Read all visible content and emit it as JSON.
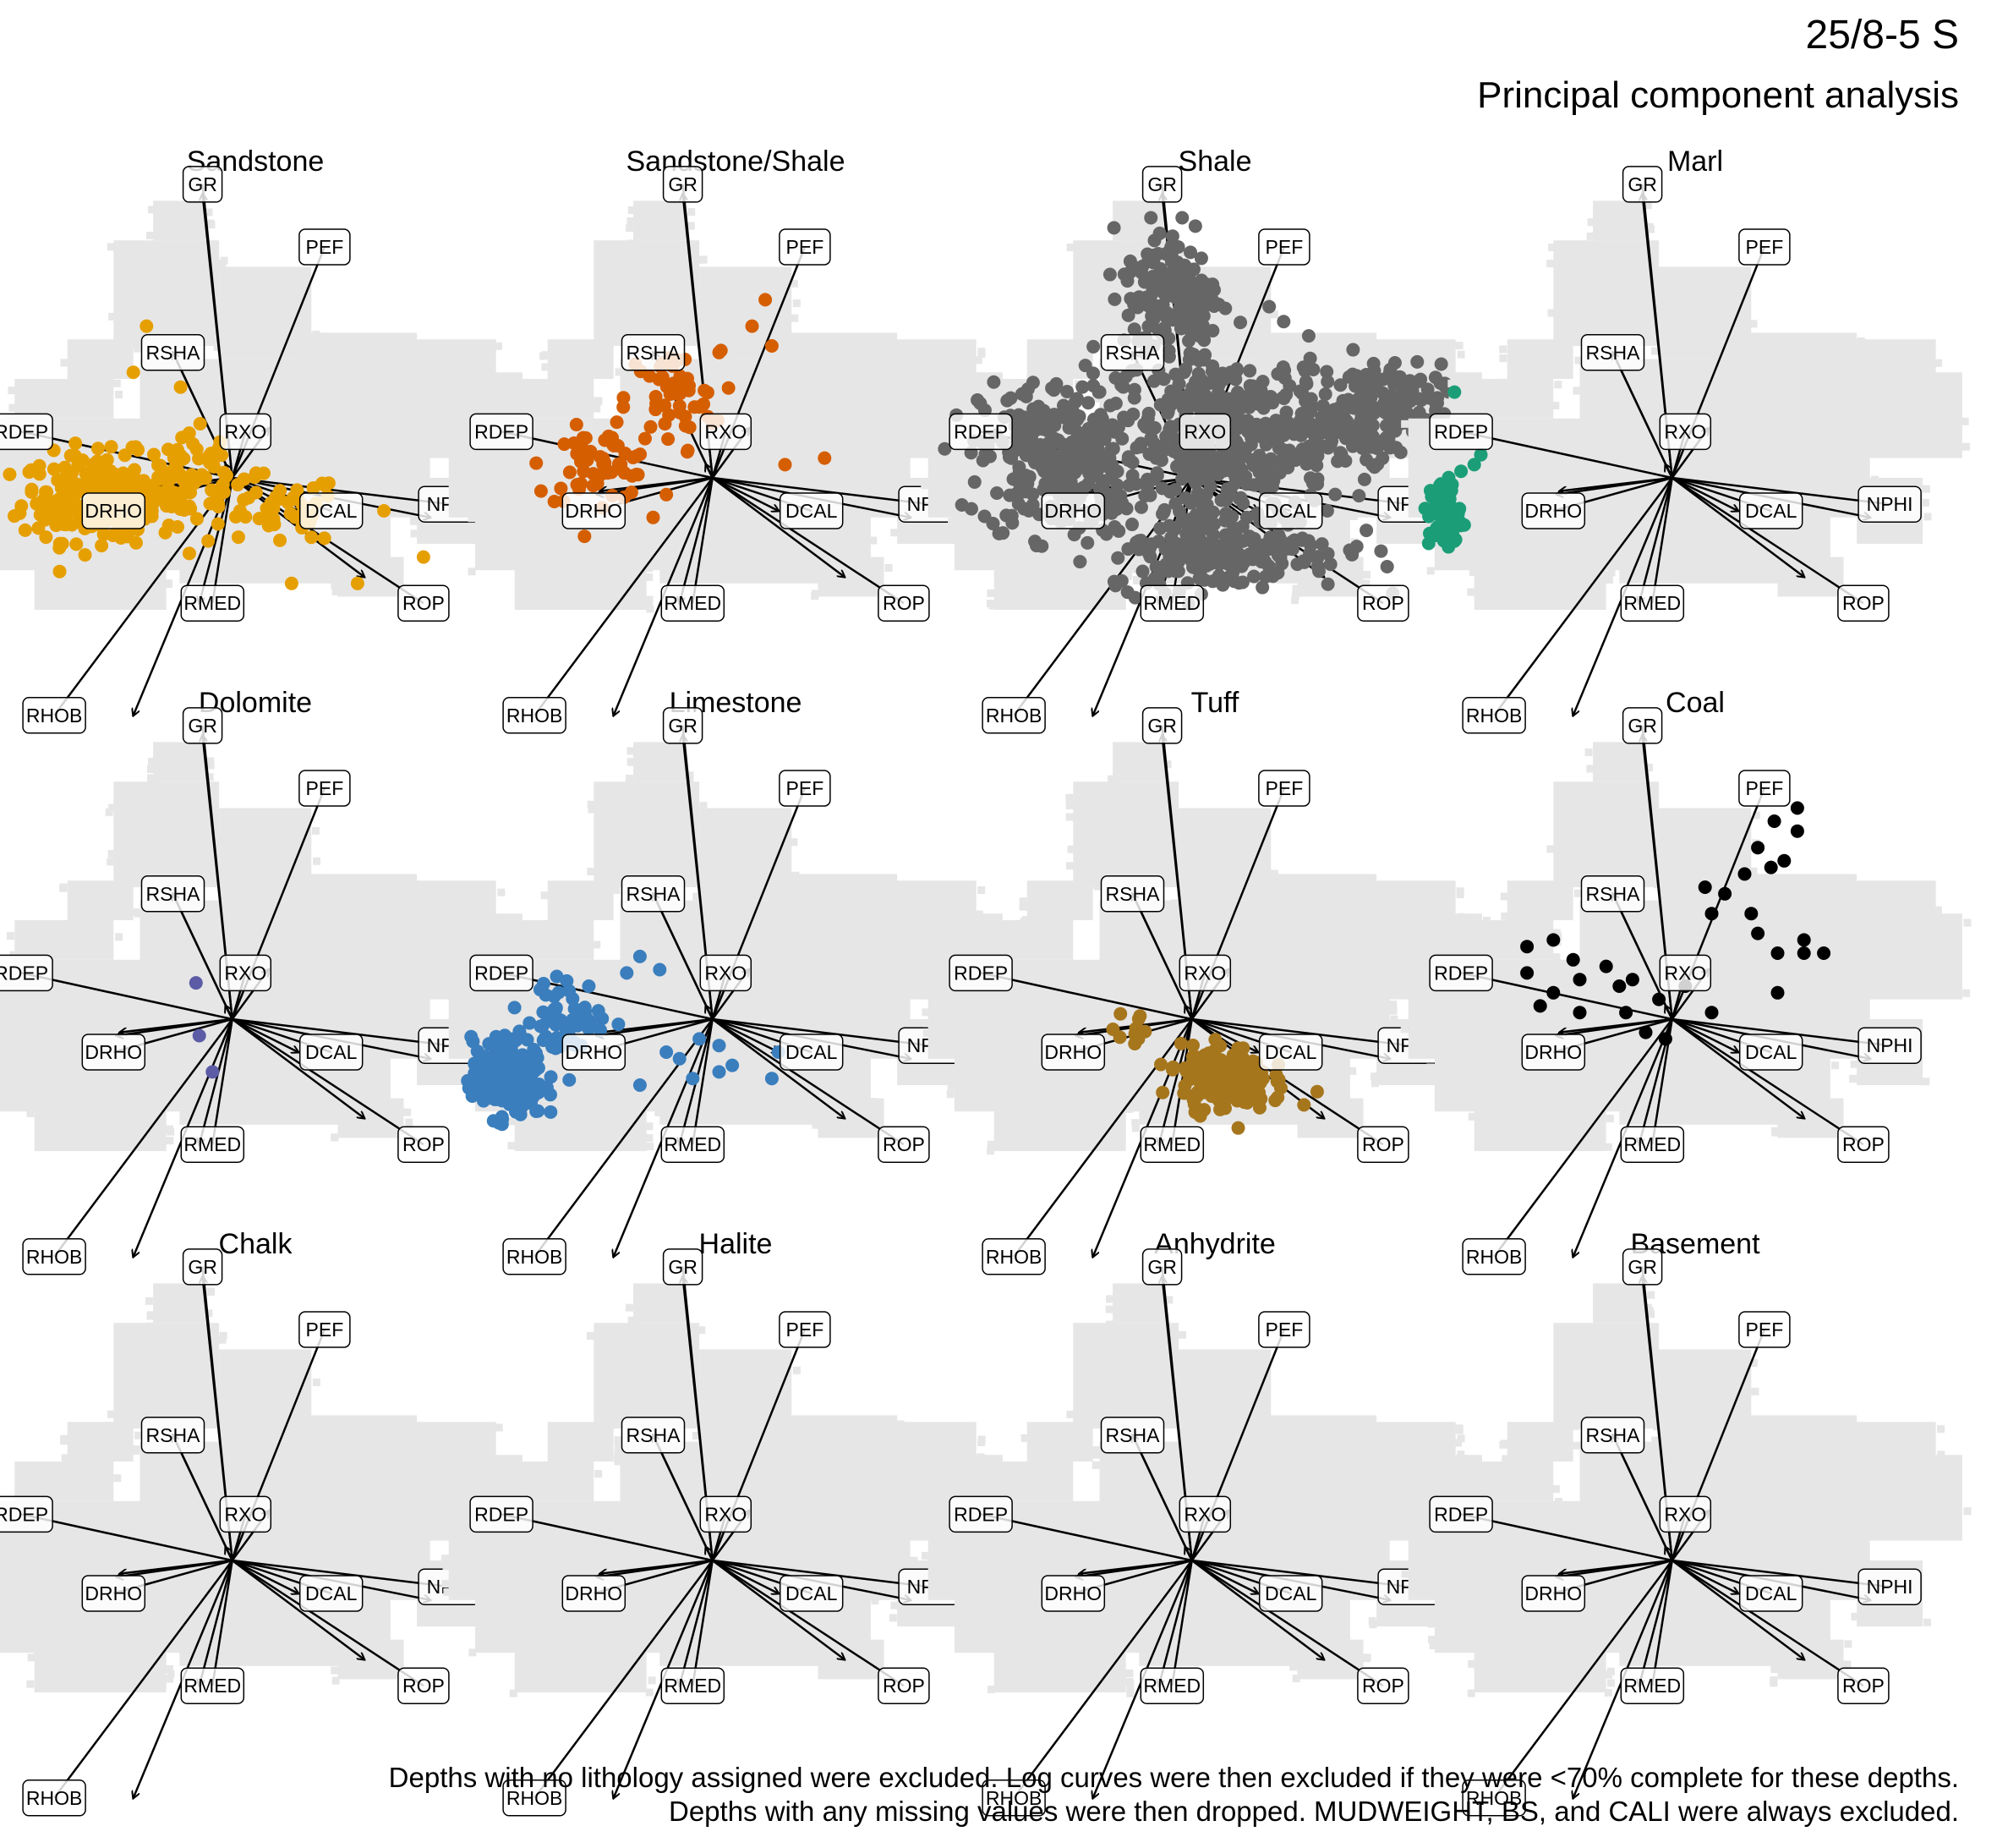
{
  "title": "25/8-5 S",
  "subtitle": "Principal component analysis",
  "caption": [
    "Depths with no lithology assigned were excluded. Log curves were then excluded if they were <70% complete for these depths.",
    "Depths with any missing values were then dropped. MUDWEIGHT, BS, and CALI were always excluded."
  ],
  "colors": {
    "background_points": "#e6e6e6",
    "arrow": "#000000",
    "label_border": "#000000",
    "label_fill": "#ffffff"
  },
  "chart_data": {
    "type": "scatter",
    "description_kind": "PCA biplot small multiples, one panel per lithology",
    "axes": {
      "x": {
        "range": [
          -5,
          5
        ]
      },
      "y": {
        "range": [
          -5,
          5
        ]
      },
      "grid": false,
      "ticks": false
    },
    "variables": [
      {
        "name": "GR",
        "loading": [
          -0.45,
          4.3
        ],
        "label": [
          -0.45,
          4.45
        ]
      },
      {
        "name": "PEF",
        "loading": [
          0.55,
          0.75
        ],
        "label": [
          1.4,
          3.5
        ]
      },
      {
        "name": "RSHA",
        "loading": [
          -0.9,
          1.9
        ],
        "label": [
          -0.9,
          1.9
        ]
      },
      {
        "name": "RXO",
        "loading": [
          -0.1,
          0.2
        ],
        "label": [
          0.2,
          0.7
        ]
      },
      {
        "name": "RDEP",
        "loading": [
          -1.7,
          -0.2
        ],
        "label": [
          -3.2,
          0.7
        ]
      },
      {
        "name": "DRHO",
        "loading": [
          -1.75,
          -0.25
        ],
        "label": [
          -1.8,
          -0.5
        ]
      },
      {
        "name": "DCAL",
        "loading": [
          1.0,
          -0.5
        ],
        "label": [
          1.5,
          -0.5
        ]
      },
      {
        "name": "NPHI",
        "loading": [
          3.0,
          -0.6
        ],
        "label": [
          3.3,
          -0.4
        ]
      },
      {
        "name": "ROP",
        "loading": [
          2.0,
          -1.5
        ],
        "label": [
          2.9,
          -1.9
        ]
      },
      {
        "name": "RMED",
        "loading": [
          -0.5,
          -1.9
        ],
        "label": [
          -0.3,
          -1.9
        ]
      },
      {
        "name": "RHOB",
        "loading": [
          -1.5,
          -3.6
        ],
        "label": [
          -2.7,
          -3.6
        ]
      }
    ],
    "background_regions": [
      {
        "x": -4.0,
        "y": -0.6,
        "w": 2.6,
        "h": 1.5
      },
      {
        "x": -3.3,
        "y": 0.9,
        "w": 1.5,
        "h": 0.6
      },
      {
        "x": -2.5,
        "y": 1.5,
        "w": 1.0,
        "h": 0.6
      },
      {
        "x": -1.8,
        "y": 2.0,
        "w": 1.6,
        "h": 1.6
      },
      {
        "x": -1.2,
        "y": 3.6,
        "w": 0.8,
        "h": 0.6
      },
      {
        "x": -1.4,
        "y": -0.6,
        "w": 4.4,
        "h": 2.4
      },
      {
        "x": -0.2,
        "y": 1.8,
        "w": 1.4,
        "h": 1.4
      },
      {
        "x": 1.0,
        "y": 1.0,
        "w": 1.8,
        "h": 1.2
      },
      {
        "x": 2.0,
        "y": 1.4,
        "w": 2.0,
        "h": 0.7
      },
      {
        "x": 2.4,
        "y": 0.3,
        "w": 2.0,
        "h": 1.3
      },
      {
        "x": 2.8,
        "y": -1.0,
        "w": 1.0,
        "h": 1.0
      },
      {
        "x": -3.6,
        "y": -1.4,
        "w": 3.4,
        "h": 0.9
      },
      {
        "x": -0.8,
        "y": -1.6,
        "w": 3.2,
        "h": 1.1
      },
      {
        "x": -3.0,
        "y": -2.0,
        "w": 2.0,
        "h": 0.7
      },
      {
        "x": 1.6,
        "y": -1.8,
        "w": 1.0,
        "h": 0.6
      }
    ],
    "panels": [
      {
        "name": "Sandstone",
        "color": "#E69F00",
        "clusters": [
          {
            "cx": -2.0,
            "cy": -0.3,
            "sx": 1.0,
            "sy": 0.55,
            "n": 260
          },
          {
            "cx": -0.6,
            "cy": 0.0,
            "sx": 0.7,
            "sy": 0.7,
            "n": 60
          },
          {
            "cx": 0.6,
            "cy": -0.5,
            "sx": 0.9,
            "sy": 0.45,
            "n": 50
          }
        ],
        "points": [
          [
            -1.3,
            2.3
          ],
          [
            -1.5,
            1.6
          ],
          [
            2.3,
            -0.5
          ],
          [
            2.9,
            -1.2
          ],
          [
            1.9,
            -1.6
          ],
          [
            0.9,
            -1.6
          ],
          [
            1.2,
            -0.9
          ]
        ]
      },
      {
        "name": "Sandstone/Shale",
        "color": "#D55E00",
        "clusters": [
          {
            "cx": -1.7,
            "cy": 0.2,
            "sx": 0.7,
            "sy": 0.45,
            "n": 60
          },
          {
            "cx": -0.6,
            "cy": 1.2,
            "sx": 0.6,
            "sy": 0.6,
            "n": 50
          }
        ],
        "points": [
          [
            0.6,
            2.3
          ],
          [
            0.8,
            2.7
          ],
          [
            0.9,
            2.0
          ],
          [
            0.1,
            1.9
          ],
          [
            -2.6,
            -0.2
          ],
          [
            -0.9,
            -0.6
          ],
          [
            1.1,
            0.2
          ],
          [
            1.7,
            0.3
          ]
        ]
      },
      {
        "name": "Shale",
        "color": "#666666",
        "clusters": [
          {
            "cx": -2.0,
            "cy": 0.3,
            "sx": 1.0,
            "sy": 1.0,
            "n": 300
          },
          {
            "cx": 0.5,
            "cy": 0.5,
            "sx": 1.3,
            "sy": 1.2,
            "n": 420
          },
          {
            "cx": 2.7,
            "cy": 1.0,
            "sx": 0.9,
            "sy": 0.6,
            "n": 220
          },
          {
            "cx": -0.3,
            "cy": 2.8,
            "sx": 0.6,
            "sy": 0.9,
            "n": 160
          },
          {
            "cx": 0.5,
            "cy": -1.1,
            "sx": 1.5,
            "sy": 0.5,
            "n": 200
          }
        ],
        "points": []
      },
      {
        "name": "Marl",
        "color": "#1B9E77",
        "clusters": [
          {
            "cx": -3.45,
            "cy": -0.55,
            "sx": 0.2,
            "sy": 0.45,
            "n": 70
          }
        ],
        "points": [
          [
            -3.3,
            1.3
          ],
          [
            -3.0,
            0.2
          ],
          [
            -2.9,
            0.35
          ],
          [
            -3.2,
            0.1
          ]
        ]
      },
      {
        "name": "Dolomite",
        "color": "#5B5BA6",
        "clusters": [],
        "points": [
          [
            -0.55,
            0.55
          ],
          [
            -0.3,
            -0.8
          ],
          [
            -0.5,
            -0.25
          ]
        ]
      },
      {
        "name": "Limestone",
        "color": "#3A7EBD",
        "clusters": [
          {
            "cx": -3.1,
            "cy": -0.9,
            "sx": 0.45,
            "sy": 0.5,
            "n": 220
          },
          {
            "cx": -2.2,
            "cy": 0.0,
            "sx": 0.5,
            "sy": 0.5,
            "n": 60
          }
        ],
        "points": [
          [
            -1.1,
            0.95
          ],
          [
            -0.8,
            0.75
          ],
          [
            -1.3,
            0.7
          ],
          [
            -0.5,
            -0.6
          ],
          [
            -0.7,
            -0.5
          ],
          [
            0.1,
            -0.8
          ],
          [
            0.3,
            -0.7
          ],
          [
            0.1,
            -0.4
          ],
          [
            -0.3,
            -0.9
          ],
          [
            -1.1,
            -1.0
          ],
          [
            0.9,
            -0.9
          ],
          [
            1.0,
            -0.5
          ],
          [
            -0.2,
            -0.3
          ]
        ]
      },
      {
        "name": "Tuff",
        "color": "#A6761D",
        "clusters": [
          {
            "cx": 0.5,
            "cy": -0.9,
            "sx": 0.55,
            "sy": 0.4,
            "n": 200
          },
          {
            "cx": -0.9,
            "cy": -0.2,
            "sx": 0.3,
            "sy": 0.25,
            "n": 12
          }
        ],
        "points": [
          [
            1.9,
            -1.1
          ],
          [
            1.7,
            -1.3
          ]
        ]
      },
      {
        "name": "Coal",
        "color": "#000000",
        "clusters": [],
        "points": [
          [
            1.55,
            3.0
          ],
          [
            1.9,
            2.85
          ],
          [
            1.9,
            3.2
          ],
          [
            1.3,
            2.6
          ],
          [
            1.5,
            2.3
          ],
          [
            1.7,
            2.4
          ],
          [
            1.1,
            2.2
          ],
          [
            0.8,
            1.9
          ],
          [
            0.5,
            2.0
          ],
          [
            0.6,
            1.6
          ],
          [
            1.2,
            1.6
          ],
          [
            1.3,
            1.3
          ],
          [
            2.0,
            1.2
          ],
          [
            1.6,
            1.0
          ],
          [
            2.0,
            1.0
          ],
          [
            2.3,
            1.0
          ],
          [
            -2.2,
            1.1
          ],
          [
            -1.8,
            1.2
          ],
          [
            -1.5,
            0.9
          ],
          [
            -2.2,
            0.7
          ],
          [
            -1.8,
            0.4
          ],
          [
            -1.4,
            0.6
          ],
          [
            -1.0,
            0.8
          ],
          [
            -0.8,
            0.5
          ],
          [
            -0.6,
            0.6
          ],
          [
            -0.2,
            0.3
          ],
          [
            -2.0,
            0.2
          ],
          [
            -1.4,
            0.1
          ],
          [
            -0.7,
            0.1
          ],
          [
            0.2,
            0.5
          ],
          [
            0.6,
            0.1
          ],
          [
            1.6,
            0.4
          ],
          [
            -0.4,
            -0.2
          ],
          [
            -0.1,
            -0.3
          ]
        ]
      },
      {
        "name": "Chalk",
        "color": "#CC79A7",
        "clusters": [],
        "points": []
      },
      {
        "name": "Halite",
        "color": "#56B4E9",
        "clusters": [],
        "points": []
      },
      {
        "name": "Anhydrite",
        "color": "#F0E442",
        "clusters": [],
        "points": []
      },
      {
        "name": "Basement",
        "color": "#999999",
        "clusters": [],
        "points": []
      }
    ]
  }
}
